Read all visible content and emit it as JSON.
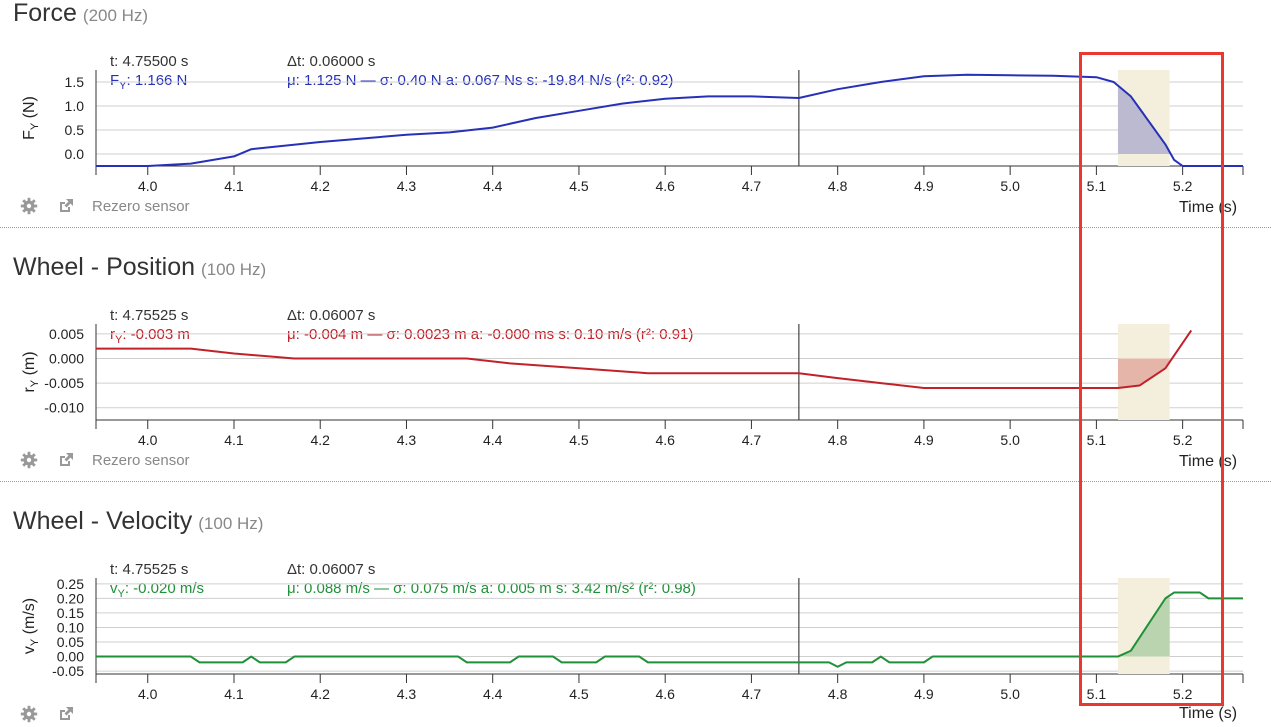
{
  "panels": [
    {
      "title": "Force",
      "rate": "(200 Hz)",
      "t_label": "t: 4.75500 s",
      "dt_label": "Δt: 0.06000 s",
      "value_label": "F",
      "value_sub": "Y",
      "value_rest": ": 1.166 N",
      "stats_label": "μ: 1.125 N — σ: 0.40 N   a: 0.067 Ns   s: -19.84 N/s (r²: 0.92)",
      "ylabel_main": "F",
      "ylabel_sub": "Y",
      "ylabel_rest": " (N)",
      "tools_label": "Rezero sensor",
      "xlabel": "Time (s)",
      "color": "#2731b8"
    },
    {
      "title": "Wheel - Position",
      "rate": "(100 Hz)",
      "t_label": "t: 4.75525 s",
      "dt_label": "Δt: 0.06007 s",
      "value_label": "r",
      "value_sub": "Y",
      "value_rest": ": -0.003 m",
      "stats_label": "μ: -0.004 m — σ: 0.0023 m   a: -0.000 ms   s: 0.10 m/s (r²: 0.91)",
      "ylabel_main": "r",
      "ylabel_sub": "Y",
      "ylabel_rest": " (m)",
      "tools_label": "Rezero sensor",
      "xlabel": "Time (s)",
      "color": "#c0222a"
    },
    {
      "title": "Wheel - Velocity",
      "rate": "(100 Hz)",
      "t_label": "t: 4.75525 s",
      "dt_label": "Δt: 0.06007 s",
      "value_label": "v",
      "value_sub": "Y",
      "value_rest": ": -0.020 m/s",
      "stats_label": "μ: 0.088 m/s — σ: 0.075 m/s   a: 0.005 m   s: 3.42 m/s² (r²: 0.98)",
      "ylabel_main": "v",
      "ylabel_sub": "Y",
      "ylabel_rest": " (m/s)",
      "tools_label": "",
      "xlabel": "Time (s)",
      "color": "#1f9138"
    }
  ],
  "chart_data": [
    {
      "type": "line",
      "xlabel": "Time (s)",
      "ylabel": "FY (N)",
      "xlim": [
        3.94,
        5.27
      ],
      "ylim": [
        -0.25,
        1.75
      ],
      "xticks": [
        4.0,
        4.1,
        4.2,
        4.3,
        4.4,
        4.5,
        4.6,
        4.7,
        4.8,
        4.9,
        5.0,
        5.1,
        5.2
      ],
      "yticks": [
        0.0,
        0.5,
        1.0,
        1.5
      ],
      "ytick_labels": [
        "0.0",
        "0.5",
        "1.0",
        "1.5"
      ],
      "cursor_x": 4.755,
      "selection": [
        5.125,
        5.185
      ],
      "x": [
        3.94,
        4.0,
        4.05,
        4.1,
        4.12,
        4.2,
        4.3,
        4.35,
        4.4,
        4.45,
        4.5,
        4.55,
        4.6,
        4.65,
        4.7,
        4.755,
        4.8,
        4.85,
        4.9,
        4.95,
        5.0,
        5.05,
        5.1,
        5.12,
        5.14,
        5.16,
        5.18,
        5.19,
        5.2,
        5.22,
        5.25,
        5.27
      ],
      "y": [
        -0.3,
        -0.28,
        -0.2,
        -0.05,
        0.1,
        0.25,
        0.4,
        0.45,
        0.55,
        0.75,
        0.9,
        1.05,
        1.15,
        1.2,
        1.2,
        1.166,
        1.35,
        1.5,
        1.62,
        1.65,
        1.64,
        1.63,
        1.6,
        1.5,
        1.2,
        0.7,
        0.2,
        -0.12,
        -0.28,
        -0.28,
        -0.3,
        -0.32
      ],
      "color": "#2731b8"
    },
    {
      "type": "line",
      "xlabel": "Time (s)",
      "ylabel": "rY (m)",
      "xlim": [
        3.94,
        5.27
      ],
      "ylim": [
        -0.0125,
        0.007
      ],
      "xticks": [
        4.0,
        4.1,
        4.2,
        4.3,
        4.4,
        4.5,
        4.6,
        4.7,
        4.8,
        4.9,
        5.0,
        5.1,
        5.2
      ],
      "yticks": [
        0.005,
        0.0,
        -0.005,
        -0.01
      ],
      "ytick_labels": [
        "0.005",
        "0.000",
        "-0.005",
        "-0.010"
      ],
      "cursor_x": 4.755,
      "selection": [
        5.125,
        5.185
      ],
      "x": [
        3.94,
        4.05,
        4.1,
        4.17,
        4.37,
        4.42,
        4.5,
        4.58,
        4.7,
        4.755,
        4.8,
        4.85,
        4.9,
        5.0,
        5.1,
        5.125,
        5.15,
        5.18,
        5.21
      ],
      "y": [
        0.002,
        0.002,
        0.001,
        0.0,
        0.0,
        -0.001,
        -0.002,
        -0.003,
        -0.003,
        -0.003,
        -0.004,
        -0.005,
        -0.006,
        -0.006,
        -0.006,
        -0.006,
        -0.0055,
        -0.002,
        0.0057
      ],
      "color": "#c0222a"
    },
    {
      "type": "line",
      "xlabel": "Time (s)",
      "ylabel": "vY (m/s)",
      "xlim": [
        3.94,
        5.27
      ],
      "ylim": [
        -0.06,
        0.27
      ],
      "xticks": [
        4.0,
        4.1,
        4.2,
        4.3,
        4.4,
        4.5,
        4.6,
        4.7,
        4.8,
        4.9,
        5.0,
        5.1,
        5.2
      ],
      "yticks": [
        0.25,
        0.2,
        0.15,
        0.1,
        0.05,
        0.0,
        -0.05
      ],
      "ytick_labels": [
        "0.25",
        "0.20",
        "0.15",
        "0.10",
        "0.05",
        "0.00",
        "-0.05"
      ],
      "cursor_x": 4.755,
      "selection": [
        5.125,
        5.185
      ],
      "x": [
        3.94,
        4.05,
        4.06,
        4.11,
        4.12,
        4.13,
        4.16,
        4.17,
        4.36,
        4.37,
        4.42,
        4.43,
        4.47,
        4.48,
        4.52,
        4.53,
        4.57,
        4.58,
        4.755,
        4.76,
        4.79,
        4.8,
        4.81,
        4.84,
        4.85,
        4.86,
        4.9,
        4.91,
        5.125,
        5.14,
        5.18,
        5.19,
        5.22,
        5.23,
        5.27
      ],
      "y": [
        0.0,
        0.0,
        -0.02,
        -0.02,
        0.0,
        -0.02,
        -0.02,
        0.0,
        0.0,
        -0.02,
        -0.02,
        0.0,
        0.0,
        -0.02,
        -0.02,
        0.0,
        0.0,
        -0.02,
        -0.02,
        -0.02,
        -0.02,
        -0.035,
        -0.02,
        -0.02,
        0.0,
        -0.02,
        -0.02,
        0.0,
        0.0,
        0.02,
        0.2,
        0.22,
        0.22,
        0.2,
        0.2
      ],
      "color": "#1f9138"
    }
  ]
}
